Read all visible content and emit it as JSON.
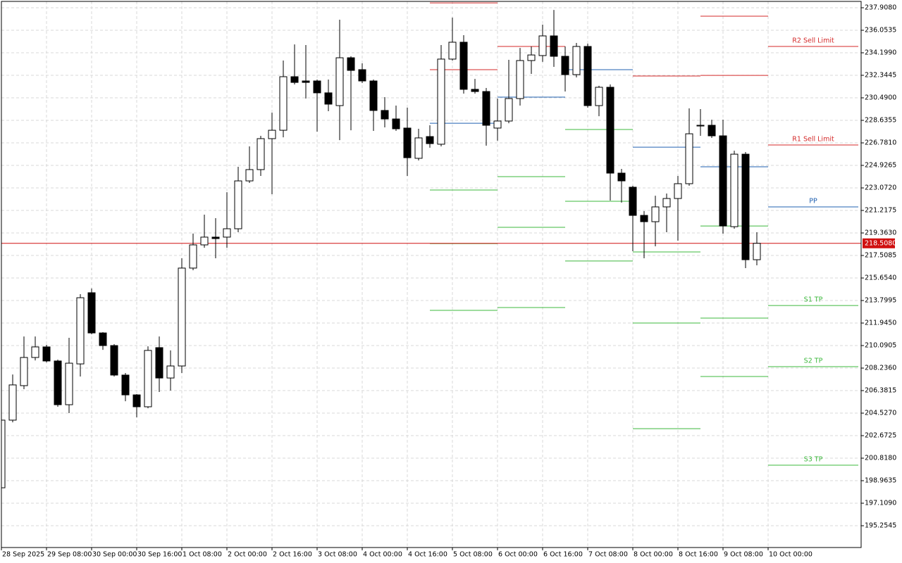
{
  "chart_data": {
    "type": "candlestick",
    "grid": true,
    "ylim": [
      193.46,
      238.43
    ],
    "yticks": [
      195.2545,
      {
        "value": 197.109,
        "label": "197.1090"
      },
      198.9635,
      {
        "value": 200.818,
        "label": "200.8180"
      },
      202.6725,
      {
        "value": 204.527,
        "label": "204.5270"
      },
      206.3815,
      {
        "value": 208.236,
        "label": "208.2360"
      },
      {
        "value": 210.0905,
        "label": "210.0905"
      },
      {
        "value": 211.945,
        "label": "211.9450"
      },
      213.7995,
      {
        "value": 215.654,
        "label": "215.6540"
      },
      217.5085,
      {
        "value": 219.363,
        "label": "219.3630"
      },
      221.2175,
      {
        "value": 223.072,
        "label": "223.0720"
      },
      224.9265,
      {
        "value": 226.781,
        "label": "226.7810"
      },
      228.6355,
      {
        "value": 230.49,
        "label": "230.4900"
      },
      232.3445,
      {
        "value": 234.199,
        "label": "234.1990"
      },
      236.0535,
      {
        "value": 237.908,
        "label": "237.9080"
      }
    ],
    "categories": [
      "28 Sep 2025",
      null,
      null,
      null,
      "29 Sep 08:00",
      null,
      null,
      null,
      "30 Sep 00:00",
      null,
      null,
      null,
      "30 Sep 16:00",
      null,
      null,
      null,
      "1 Oct 08:00",
      null,
      null,
      null,
      "2 Oct 00:00",
      null,
      null,
      null,
      "2 Oct 16:00",
      null,
      null,
      null,
      "3 Oct 08:00",
      null,
      null,
      null,
      "4 Oct 00:00",
      null,
      null,
      null,
      "4 Oct 16:00",
      null,
      null,
      null,
      "5 Oct 08:00",
      null,
      null,
      null,
      "6 Oct 00:00",
      null,
      null,
      null,
      "6 Oct 16:00",
      null,
      null,
      null,
      "7 Oct 08:00",
      null,
      null,
      null,
      "8 Oct 00:00",
      null,
      null,
      null,
      "8 Oct 16:00",
      null,
      null,
      null,
      "9 Oct 08:00",
      null,
      null,
      null,
      "10 Oct 00:00"
    ],
    "open": [
      198.38,
      203.95,
      206.79,
      209.11,
      209.98,
      208.82,
      205.22,
      208.58,
      214.44,
      211.13,
      210.09,
      207.66,
      206.03,
      205.05,
      209.92,
      207.42,
      208.41,
      216.47,
      218.38,
      219.02,
      219.02,
      219.71,
      223.65,
      224.58,
      227.13,
      227.82,
      232.23,
      231.88,
      231.88,
      230.9,
      229.85,
      233.79,
      232.81,
      231.88,
      229.45,
      228.75,
      228.0,
      225.51,
      227.3,
      226.67,
      233.68,
      235.07,
      231.19,
      231.01,
      228.0,
      228.58,
      230.43,
      233.56,
      233.97,
      235.59,
      233.91,
      232.4,
      234.72,
      229.85,
      231.36,
      224.29,
      223.13,
      220.81,
      220.29,
      221.51,
      222.2,
      223.42,
      228.17,
      228.23,
      227.36,
      219.88,
      225.85,
      217.16,
      null
    ],
    "high": [
      203.95,
      207.71,
      210.84,
      210.84,
      210.15,
      208.93,
      210.73,
      214.32,
      214.79,
      211.19,
      210.21,
      207.83,
      206.09,
      210.03,
      210.84,
      209.69,
      217.28,
      219.31,
      220.87,
      220.58,
      222.72,
      224.81,
      226.49,
      227.36,
      229.27,
      233.56,
      234.89,
      234.84,
      232.0,
      232.0,
      236.92,
      233.91,
      233.33,
      232.0,
      230.55,
      229.85,
      229.68,
      227.94,
      228.23,
      234.84,
      237.1,
      235.65,
      232.05,
      231.3,
      230.43,
      233.62,
      234.6,
      234.72,
      236.52,
      237.73,
      234.72,
      235.01,
      234.95,
      231.48,
      231.59,
      224.64,
      223.25,
      221.16,
      222.43,
      222.61,
      224.06,
      229.62,
      229.56,
      228.69,
      228.69,
      226.14,
      226.03,
      219.42,
      null
    ],
    "low": [
      198.38,
      203.77,
      206.5,
      208.87,
      208.7,
      205.05,
      204.53,
      207.54,
      211.02,
      209.74,
      207.54,
      205.51,
      204.18,
      204.93,
      206.27,
      206.38,
      207.83,
      216.29,
      218.15,
      217.28,
      218.15,
      219.42,
      223.48,
      224.06,
      222.55,
      227.24,
      231.59,
      230.43,
      227.71,
      229.39,
      227.01,
      227.82,
      231.71,
      227.77,
      228.06,
      227.77,
      224.06,
      225.33,
      226.38,
      226.49,
      233.56,
      230.84,
      230.84,
      226.55,
      226.96,
      228.4,
      229.85,
      232.46,
      233.45,
      233.04,
      231.01,
      232.17,
      229.68,
      228.98,
      222.03,
      221.86,
      217.86,
      217.28,
      218.26,
      219.42,
      218.73,
      223.25,
      227.36,
      227.19,
      219.31,
      219.71,
      216.47,
      216.7,
      null
    ],
    "close": [
      203.95,
      206.85,
      209.11,
      209.98,
      208.82,
      205.22,
      208.64,
      214.03,
      211.13,
      210.09,
      207.66,
      206.03,
      205.05,
      209.69,
      207.42,
      208.41,
      216.47,
      218.38,
      219.02,
      218.9,
      219.71,
      223.65,
      224.58,
      227.13,
      227.82,
      232.23,
      231.76,
      231.76,
      230.9,
      229.97,
      233.79,
      232.75,
      231.88,
      229.45,
      228.75,
      227.94,
      225.56,
      227.19,
      226.72,
      233.68,
      235.07,
      231.19,
      231.01,
      228.23,
      228.58,
      230.43,
      233.56,
      234.02,
      235.59,
      233.91,
      232.4,
      234.72,
      229.85,
      231.36,
      224.29,
      223.65,
      220.81,
      220.29,
      221.51,
      222.2,
      223.42,
      227.53,
      228.23,
      227.36,
      219.94,
      225.85,
      217.16,
      218.51,
      null
    ],
    "current_price": {
      "value": 218.508,
      "label": "218.5080",
      "color": "#d01010"
    },
    "pivot_levels": [
      {
        "name": "R2 Sell Limit",
        "color": "#d42a2a",
        "values": [
          238.31,
          null,
          null,
          null,
          237.21,
          234.72
        ]
      },
      {
        "name": "R1 Sell Limit",
        "color": "#d42a2a",
        "values": [
          232.81,
          234.72,
          null,
          232.29,
          232.34,
          226.61
        ]
      },
      {
        "name": "PP",
        "color": "#2060b0",
        "values": [
          228.4,
          230.55,
          232.81,
          226.43,
          224.81,
          221.51
        ]
      },
      {
        "name": "S1 TP",
        "color": "#3cb83c",
        "values": [
          222.9,
          224.0,
          227.88,
          217.8,
          219.94,
          213.39
        ]
      },
      {
        "name": "S2 TP",
        "color": "#3cb83c",
        "values": [
          218.49,
          219.83,
          221.97,
          211.95,
          212.35,
          208.35
        ]
      },
      {
        "name": "S3 TP",
        "color": "#3cb83c",
        "values": [
          212.99,
          213.22,
          217.05,
          203.25,
          207.54,
          200.24
        ]
      }
    ]
  }
}
